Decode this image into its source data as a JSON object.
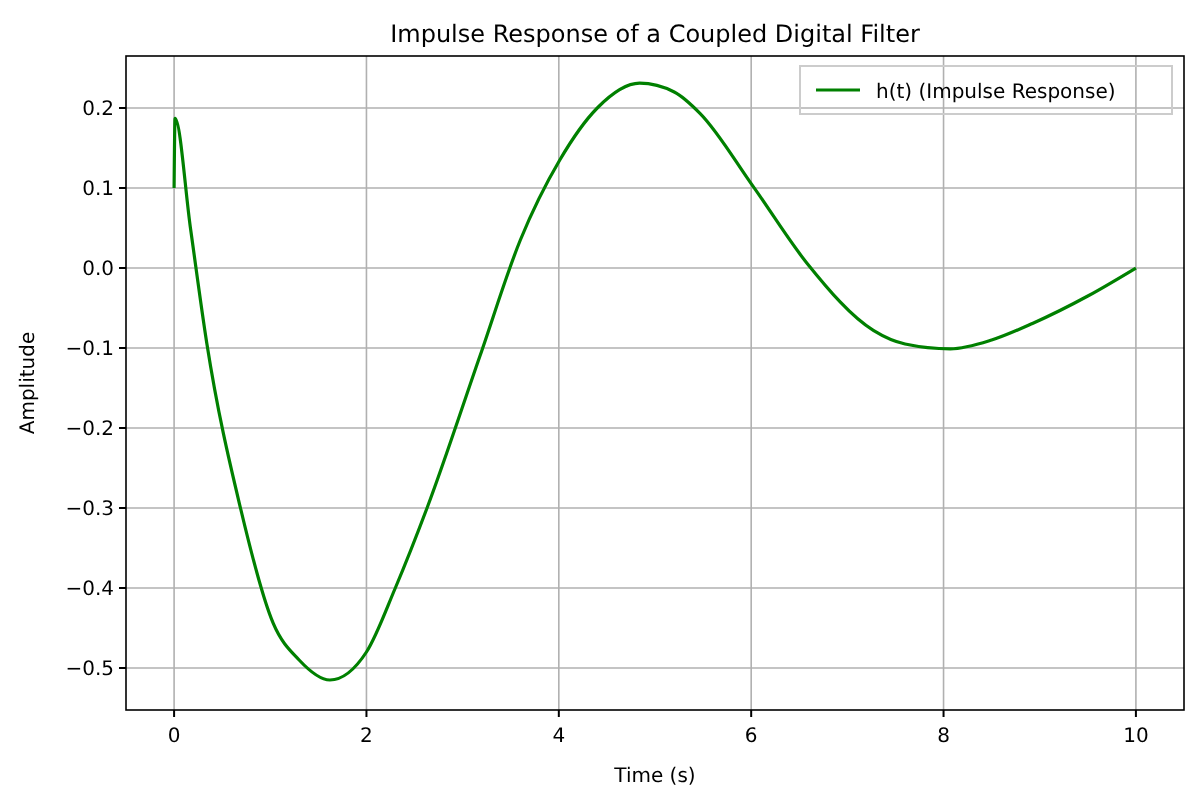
{
  "chart_data": {
    "type": "line",
    "title": "Impulse Response of a Coupled Digital Filter",
    "xlabel": "Time (s)",
    "ylabel": "Amplitude",
    "xlim": [
      -0.5,
      10.5
    ],
    "ylim": [
      -0.5525,
      0.265
    ],
    "xticks": [
      0,
      2,
      4,
      6,
      8,
      10
    ],
    "yticks": [
      {
        "value": -0.5,
        "label": "−0.5"
      },
      {
        "value": -0.4,
        "label": "−0.4"
      },
      {
        "value": -0.3,
        "label": "−0.3"
      },
      {
        "value": -0.2,
        "label": "−0.2"
      },
      {
        "value": -0.1,
        "label": "−0.1"
      },
      {
        "value": 0,
        "label": "0.0"
      },
      {
        "value": 0.1,
        "label": "0.1"
      },
      {
        "value": 0.2,
        "label": "0.2"
      }
    ],
    "grid": true,
    "legend": "top right",
    "line_style": "solid",
    "marker": "none",
    "series": [
      {
        "name": "h(t) (Impulse Response)",
        "color": "#008000",
        "x": [
          0,
          0.01,
          0.17,
          0.34,
          0.69,
          1.03,
          1.3,
          1.62,
          2.0,
          2.3,
          2.63,
          3.18,
          3.6,
          4.01,
          4.4,
          4.84,
          5.2,
          5.47,
          6.02,
          6.58,
          7.27,
          7.6,
          8.07,
          8.5,
          8.93,
          9.5,
          10
        ],
        "values": [
          0.1,
          0.187,
          0.05,
          -0.094,
          -0.3,
          -0.444,
          -0.49,
          -0.515,
          -0.48,
          -0.4,
          -0.3,
          -0.11,
          0.035,
          0.135,
          0.2,
          0.231,
          0.22,
          0.193,
          0.102,
          0.006,
          -0.078,
          -0.095,
          -0.101,
          -0.09,
          -0.069,
          -0.035,
          0.0
        ]
      }
    ]
  }
}
